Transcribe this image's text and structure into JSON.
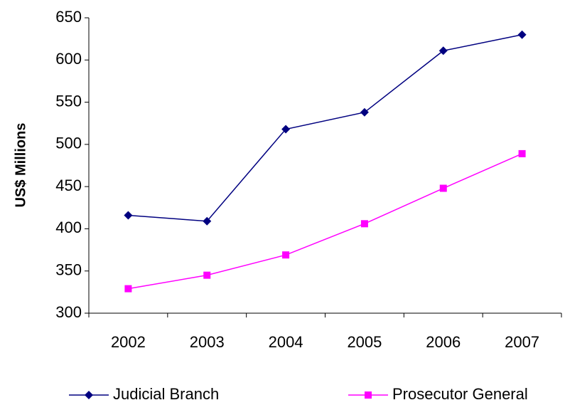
{
  "chart_data": {
    "type": "line",
    "y_label": "US$ Millions",
    "categories": [
      "2002",
      "2003",
      "2004",
      "2005",
      "2006",
      "2007"
    ],
    "series": [
      {
        "name": "Judicial Branch",
        "color": "#000080",
        "marker": "diamond",
        "values": [
          416,
          409,
          518,
          538,
          611,
          630
        ]
      },
      {
        "name": "Prosecutor General",
        "color": "#ff00ff",
        "marker": "square",
        "values": [
          329,
          345,
          369,
          406,
          448,
          489
        ]
      }
    ],
    "ylim": [
      300,
      650
    ],
    "yticks": [
      300,
      350,
      400,
      450,
      500,
      550,
      600,
      650
    ],
    "grid": false,
    "legend": "bottom"
  }
}
